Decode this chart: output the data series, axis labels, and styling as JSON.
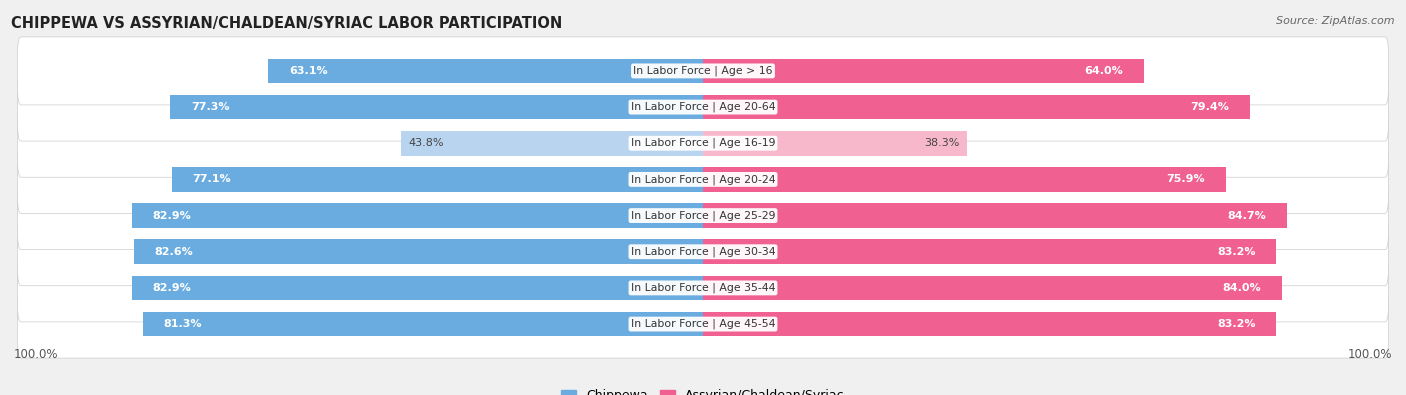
{
  "title": "CHIPPEWA VS ASSYRIAN/CHALDEAN/SYRIAC LABOR PARTICIPATION",
  "source": "Source: ZipAtlas.com",
  "categories": [
    "In Labor Force | Age > 16",
    "In Labor Force | Age 20-64",
    "In Labor Force | Age 16-19",
    "In Labor Force | Age 20-24",
    "In Labor Force | Age 25-29",
    "In Labor Force | Age 30-34",
    "In Labor Force | Age 35-44",
    "In Labor Force | Age 45-54"
  ],
  "chippewa": [
    63.1,
    77.3,
    43.8,
    77.1,
    82.9,
    82.6,
    82.9,
    81.3
  ],
  "assyrian": [
    64.0,
    79.4,
    38.3,
    75.9,
    84.7,
    83.2,
    84.0,
    83.2
  ],
  "chippewa_color": "#6aace0",
  "chippewa_color_light": "#b8d4ee",
  "assyrian_color": "#f06090",
  "assyrian_color_light": "#f8b8cc",
  "bar_height": 0.68,
  "background_color": "#f0f0f0",
  "row_bg_color": "#ffffff",
  "legend_chippewa": "Chippewa",
  "legend_assyrian": "Assyrian/Chaldean/Syriac",
  "x_max": 100.0,
  "axis_label_left": "100.0%",
  "axis_label_right": "100.0%",
  "low_threshold": 60
}
